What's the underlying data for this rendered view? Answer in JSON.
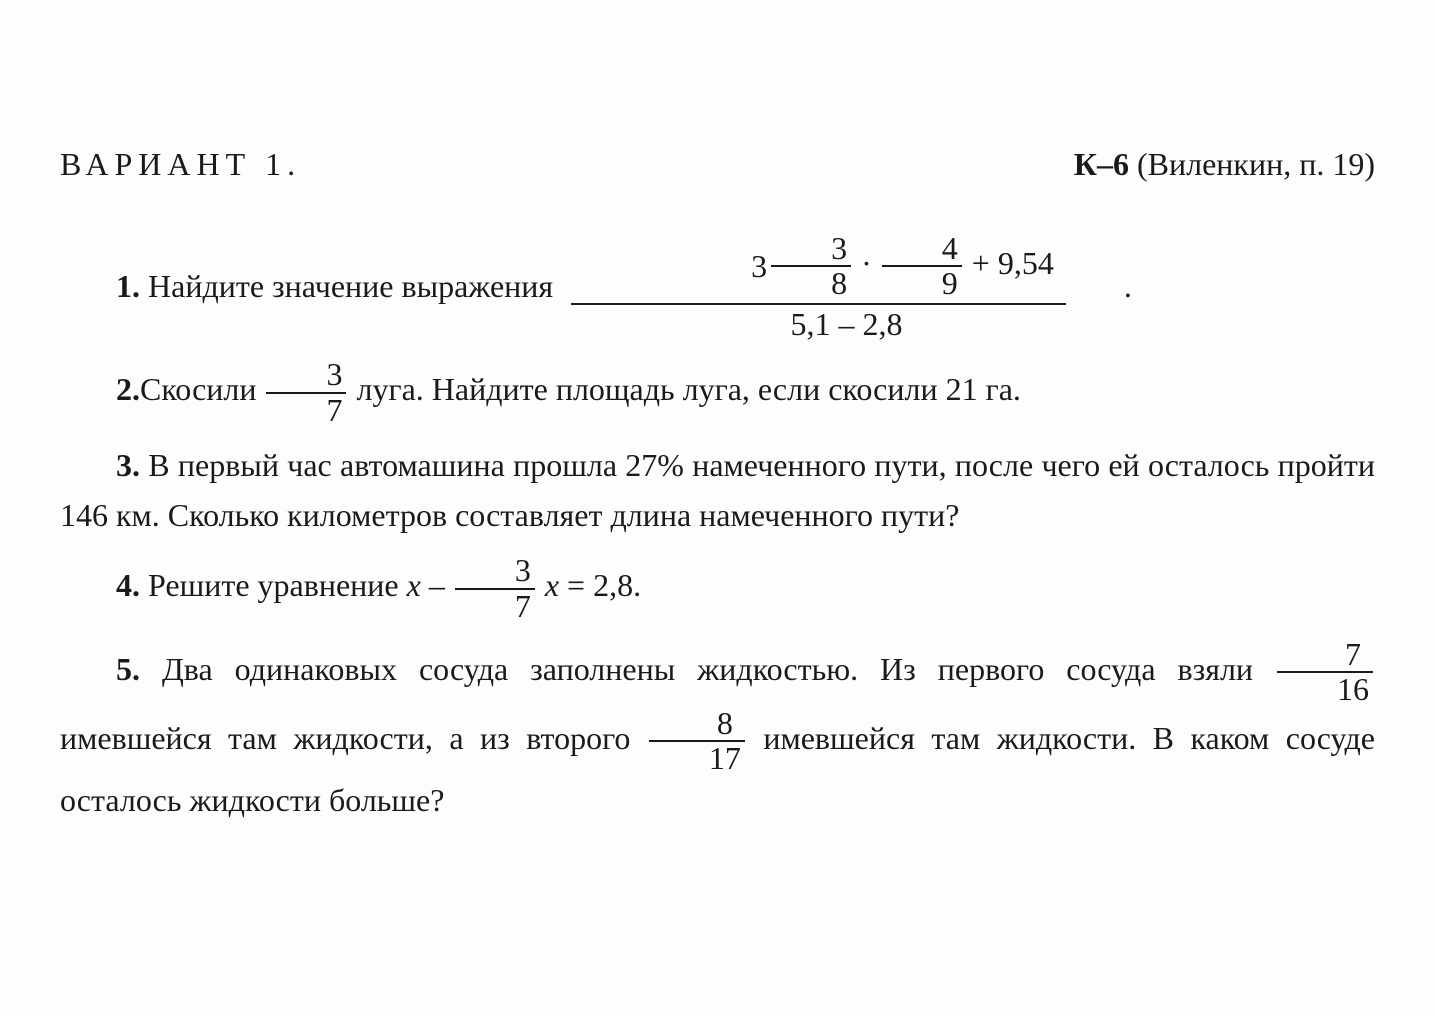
{
  "header": {
    "variant": "ВАРИАНТ 1.",
    "right": "К–6 (Виленкин, п. 19)",
    "right_bold": "К–6"
  },
  "p1": {
    "num": "1.",
    "text": "Найдите значение выражения",
    "expr": {
      "mixed_whole": "3",
      "mixed_num": "3",
      "mixed_den": "8",
      "mult_num": "4",
      "mult_den": "9",
      "plus": " + 9,54",
      "denom": "5,1 – 2,8"
    },
    "dot": "."
  },
  "p2": {
    "num": "2.",
    "pre": "Скосили ",
    "frac_num": "3",
    "frac_den": "7",
    "post": " луга. Найдите площадь луга, если скосили 21 га."
  },
  "p3": {
    "num": "3.",
    "text": "В первый час автомашина прошла 27% намеченного пути, после чего ей осталось пройти 146 км. Сколько километров составляет длина намеченного пути?"
  },
  "p4": {
    "num": "4.",
    "pre": "Решите уравнение ",
    "var1": "x",
    "minus": " – ",
    "frac_num": "3",
    "frac_den": "7",
    "var2": " x",
    "eq": " = 2,8."
  },
  "p5": {
    "num": "5.",
    "t1": "Два одинаковых сосуда заполнены жидкостью. Из первого сосуда взяли ",
    "f1_num": "7",
    "f1_den": "16",
    "t2": " имевшейся там жидкости, а из второго ",
    "f2_num": "8",
    "f2_den": "17",
    "t3": " имевшейся там жидкости. В каком сосуде осталось жидкости больше?"
  }
}
